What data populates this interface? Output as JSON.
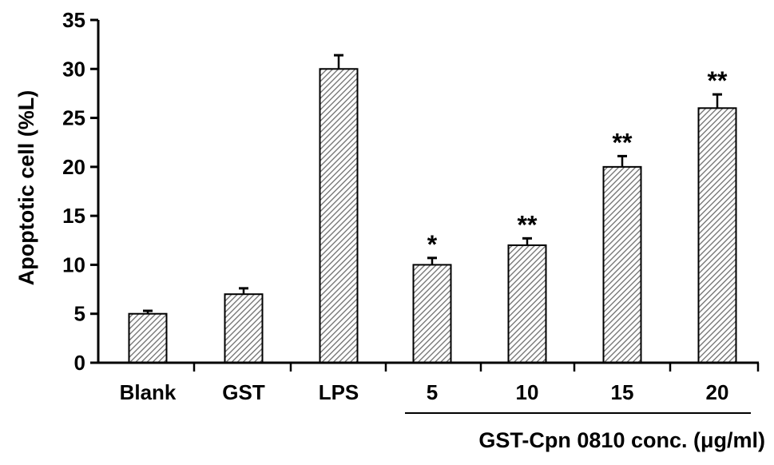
{
  "chart_data": {
    "type": "bar",
    "categories": [
      "Blank",
      "GST",
      "LPS",
      "5",
      "10",
      "15",
      "20"
    ],
    "values": [
      5,
      7,
      30,
      10,
      12,
      20,
      26
    ],
    "errors": [
      0.3,
      0.6,
      1.4,
      0.7,
      0.7,
      1.1,
      1.4
    ],
    "significance": [
      "",
      "",
      "",
      "*",
      "**",
      "**",
      "**"
    ],
    "ylabel": "Apoptotic cell (%L)",
    "group_label": "GST-Cpn 0810 conc. (μg/ml)",
    "group_categories": [
      "5",
      "10",
      "15",
      "20"
    ],
    "ylim": [
      0,
      35
    ],
    "yticks": [
      0,
      5,
      10,
      15,
      20,
      25,
      30,
      35
    ],
    "bar_fill": "hatched-gray",
    "grid": false,
    "legend": "none"
  }
}
